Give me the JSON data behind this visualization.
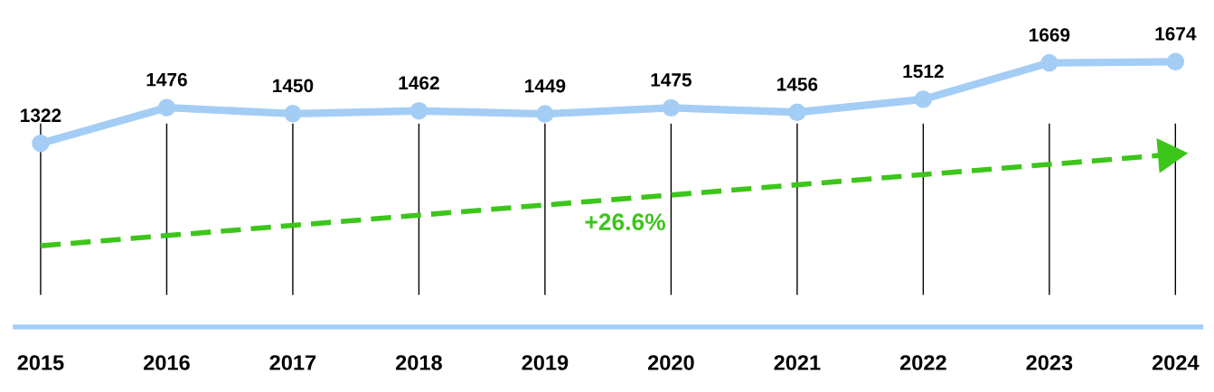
{
  "chart_data": {
    "type": "line",
    "categories": [
      "2015",
      "2016",
      "2017",
      "2018",
      "2019",
      "2020",
      "2021",
      "2022",
      "2023",
      "2024"
    ],
    "series": [
      {
        "color": "#a4cdf6",
        "values": [
          1322,
          1476,
          1450,
          1462,
          1449,
          1475,
          1456,
          1512,
          1669,
          1674
        ],
        "value_labels": [
          "1322",
          "1476",
          "1450",
          "1462",
          "1449",
          "1475",
          "1456",
          "1512",
          "1669",
          "1674"
        ]
      },
      {
        "type": "line",
        "color": "#3cc51a",
        "values": [
          880,
          924,
          968,
          1012,
          1056,
          1099,
          1143,
          1187,
          1231,
          1275
        ],
        "line_style": "dashed",
        "marker": "none"
      }
    ],
    "marker": "circle",
    "line_style": "solid",
    "grid": "x",
    "annotations": [
      "+26.6%"
    ]
  }
}
